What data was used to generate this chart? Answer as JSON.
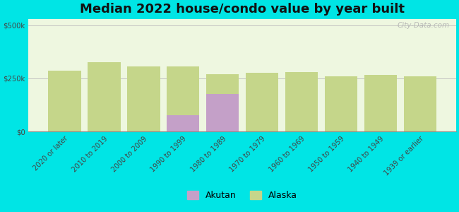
{
  "title": "Median 2022 house/condo value by year built",
  "categories": [
    "2020 or later",
    "2010 to 2019",
    "2000 to 2009",
    "1990 to 1999",
    "1980 to 1989",
    "1970 to 1979",
    "1960 to 1969",
    "1950 to 1959",
    "1940 to 1949",
    "1939 or earlier"
  ],
  "alaska_values": [
    285000,
    325000,
    305000,
    305000,
    270000,
    275000,
    280000,
    260000,
    265000,
    260000
  ],
  "akutan_values": [
    0,
    0,
    0,
    75000,
    175000,
    0,
    0,
    0,
    0,
    0
  ],
  "alaska_color": "#c5d68a",
  "akutan_color": "#c4a0c8",
  "background_color": "#00e5e5",
  "plot_bg_color": "#eef7e0",
  "yticks": [
    0,
    250000,
    500000
  ],
  "ytick_labels": [
    "$0",
    "$250k",
    "$500k"
  ],
  "ylim": [
    0,
    530000
  ],
  "bar_width": 0.38,
  "title_fontsize": 13,
  "tick_fontsize": 7.2,
  "legend_fontsize": 9,
  "watermark": "City-Data.com"
}
